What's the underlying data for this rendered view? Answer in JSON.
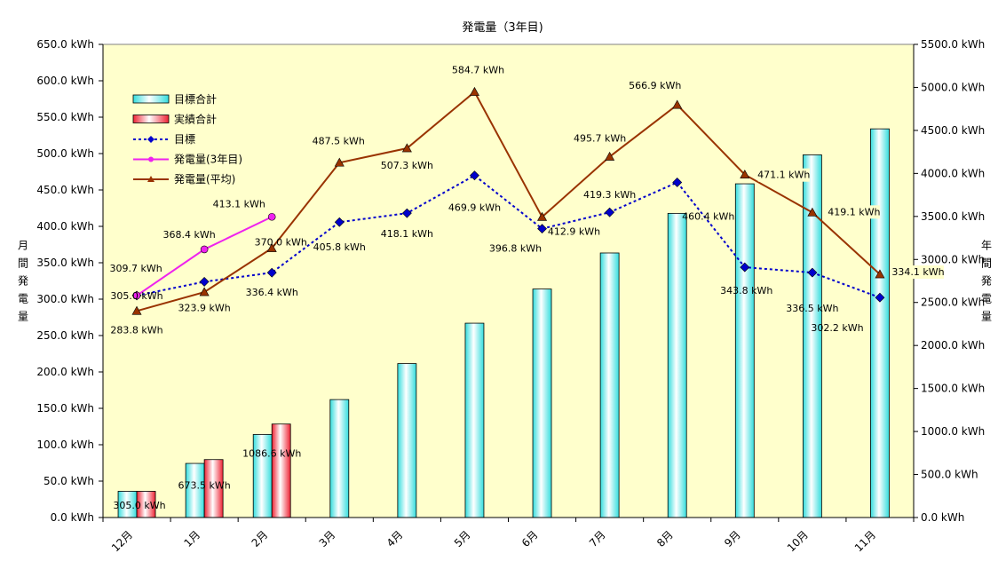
{
  "chart_data": {
    "type": "bar",
    "title": "発電量（3年目)",
    "ylabel_left": "月間発電量",
    "ylabel_right": "年間発電量",
    "categories": [
      "12月",
      "1月",
      "2月",
      "3月",
      "4月",
      "5月",
      "6月",
      "7月",
      "8月",
      "9月",
      "10月",
      "11月"
    ],
    "y_left_range": [
      0,
      650
    ],
    "y_left_ticks": [
      "0.0 kWh",
      "50.0 kWh",
      "100.0 kWh",
      "150.0 kWh",
      "200.0 kWh",
      "250.0 kWh",
      "300.0 kWh",
      "350.0 kWh",
      "400.0 kWh",
      "450.0 kWh",
      "500.0 kWh",
      "550.0 kWh",
      "600.0 kWh",
      "650.0 kWh"
    ],
    "y_right_range": [
      0,
      5500
    ],
    "y_right_ticks": [
      "0.0 kWh",
      "500.0 kWh",
      "1000.0 kWh",
      "1500.0 kWh",
      "2000.0 kWh",
      "2500.0 kWh",
      "3000.0 kWh",
      "3500.0 kWh",
      "4000.0 kWh",
      "4500.0 kWh",
      "5000.0 kWh",
      "5500.0 kWh"
    ],
    "grid": false,
    "legend_position": "top-left",
    "plot_background": "#ffffcc",
    "series": [
      {
        "name": "目標合計",
        "type": "bar",
        "axis": "right",
        "color": "#33dddd",
        "values": [
          305.0,
          628.9,
          965.3,
          1371.1,
          1789.2,
          2259.1,
          2655.9,
          3075.2,
          3535.6,
          3879.4,
          4215.9,
          4518.1
        ],
        "labels": [
          "305.0 kWh",
          null,
          null,
          null,
          null,
          null,
          null,
          null,
          null,
          null,
          null,
          null
        ]
      },
      {
        "name": "実績合計",
        "type": "bar",
        "axis": "right",
        "color": "#ee2233",
        "values": [
          305.0,
          673.5,
          1086.6,
          null,
          null,
          null,
          null,
          null,
          null,
          null,
          null,
          null
        ],
        "labels": [
          null,
          "673.5 kWh",
          "1086.6 kWh",
          null,
          null,
          null,
          null,
          null,
          null,
          null,
          null,
          null
        ]
      },
      {
        "name": "目標",
        "type": "line",
        "axis": "left",
        "color": "#0000cc",
        "values": [
          305.0,
          323.9,
          336.4,
          405.8,
          418.1,
          469.9,
          396.8,
          419.3,
          460.4,
          343.8,
          336.5,
          302.2
        ],
        "labels": [
          "",
          "323.9 kWh",
          "336.4 kWh",
          "405.8 kWh",
          "418.1 kWh",
          "469.9 kWh",
          "396.8 kWh",
          "419.3 kWh",
          "460.4 kWh",
          "343.8 kWh",
          "336.5 kWh",
          "302.2 kWh"
        ]
      },
      {
        "name": "発電量(3年目)",
        "type": "line",
        "axis": "left",
        "color": "#ee22ee",
        "values": [
          305.0,
          368.4,
          413.1,
          null,
          null,
          null,
          null,
          null,
          null,
          null,
          null,
          null
        ],
        "labels": [
          "305.0 kWh",
          "368.4 kWh",
          "413.1 kWh",
          null,
          null,
          null,
          null,
          null,
          null,
          null,
          null,
          null
        ]
      },
      {
        "name": "発電量(平均)",
        "type": "line",
        "axis": "left",
        "color": "#993300",
        "values": [
          283.8,
          309.7,
          370.0,
          487.5,
          507.3,
          584.7,
          412.9,
          495.7,
          566.9,
          471.1,
          419.1,
          334.1
        ],
        "labels": [
          "283.8 kWh",
          "309.7 kWh",
          "370.0 kWh",
          "487.5 kWh",
          "507.3 kWh",
          "584.7 kWh",
          "412.9 kWh",
          "495.7 kWh",
          "566.9 kWh",
          "471.1 kWh",
          "419.1 kWh",
          "334.1 kWh"
        ]
      }
    ]
  }
}
